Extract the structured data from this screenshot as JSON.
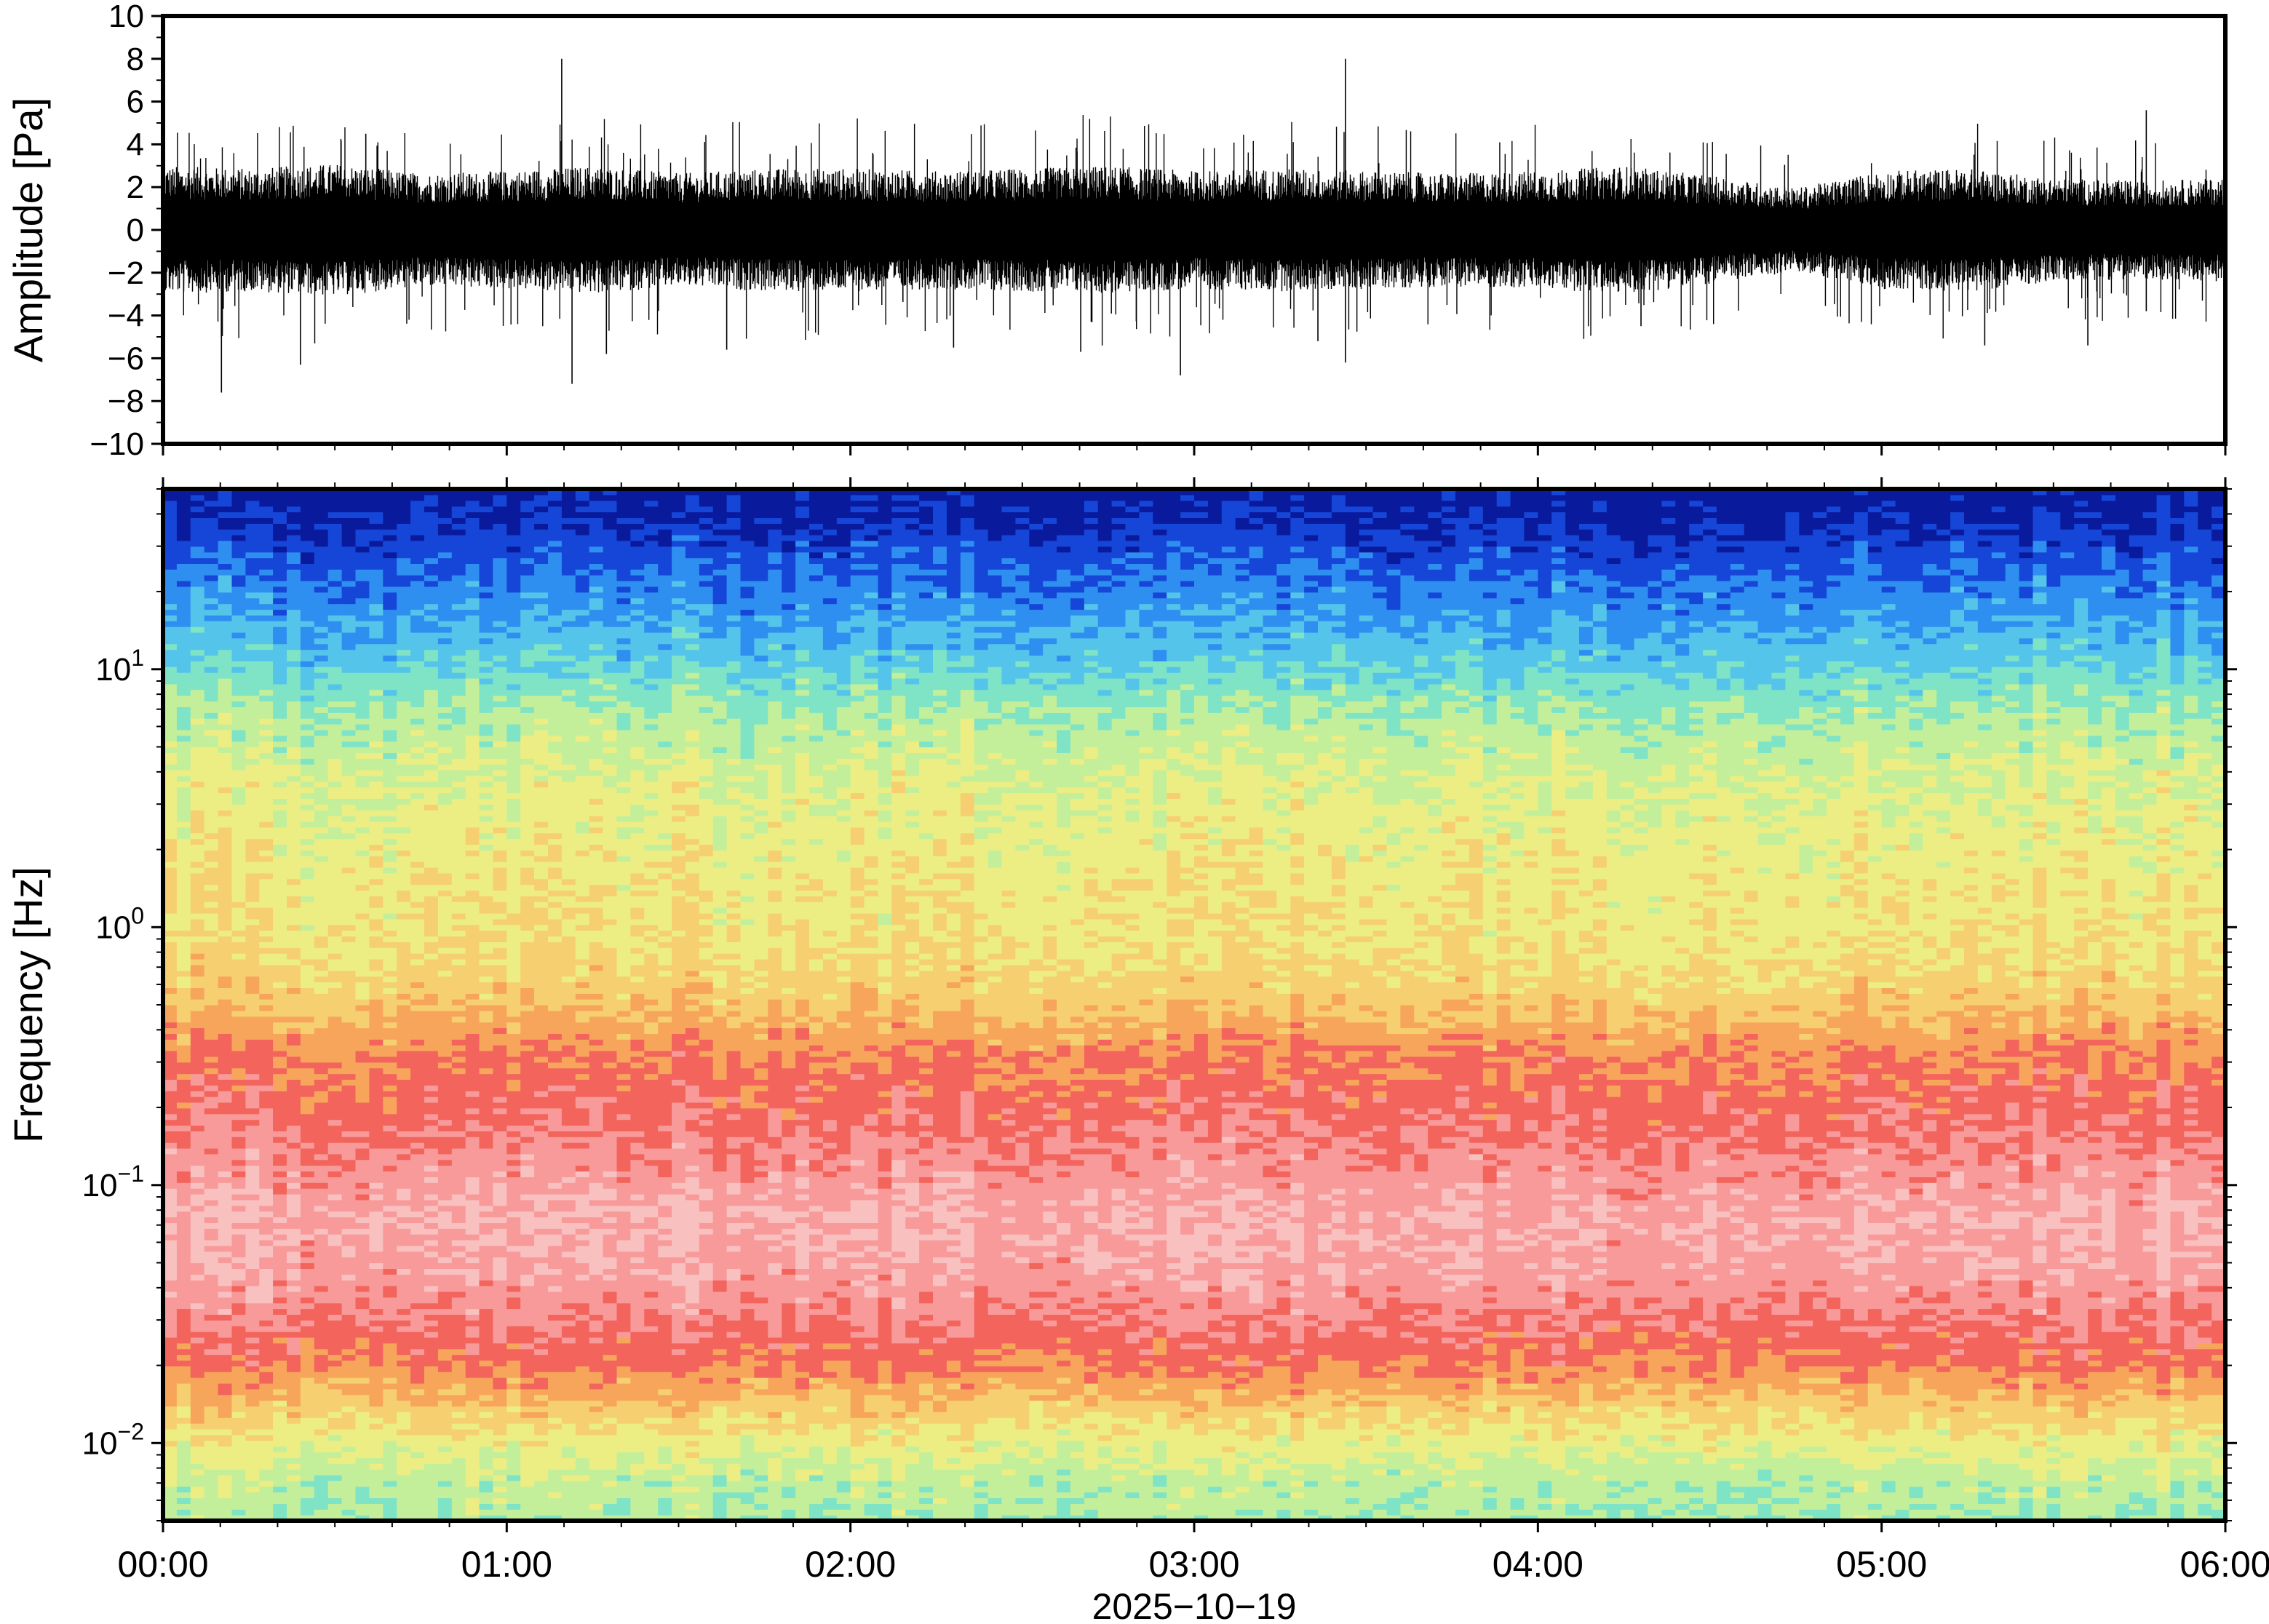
{
  "chart_data": [
    {
      "type": "line",
      "ylabel": "Amplitude [Pa]",
      "ylim": [
        -10,
        10
      ],
      "yticks": [
        10,
        8,
        6,
        4,
        2,
        0,
        -2,
        -4,
        -6,
        -8,
        -10
      ],
      "ytick_labels": [
        "10",
        "8",
        "6",
        "4",
        "2",
        "0",
        "−2",
        "−4",
        "−6",
        "−8",
        "−10"
      ],
      "xlim": [
        "00:00",
        "06:00"
      ],
      "envelope_hours": [
        0.0,
        0.25,
        0.5,
        0.75,
        1.0,
        1.25,
        1.5,
        1.75,
        2.0,
        2.25,
        2.5,
        2.75,
        3.0,
        3.25,
        3.5,
        3.75,
        4.0,
        4.25,
        4.5,
        4.75,
        5.0,
        5.25,
        5.5,
        5.75,
        6.0
      ],
      "envelope_amplitude": [
        2.6,
        2.5,
        2.7,
        2.3,
        2.4,
        2.6,
        2.3,
        2.5,
        2.5,
        2.4,
        2.5,
        2.6,
        2.4,
        2.5,
        2.4,
        2.3,
        2.4,
        2.6,
        2.2,
        1.7,
        2.4,
        2.5,
        2.1,
        2.0,
        2.1
      ],
      "spikes": [
        {
          "t": 0.17,
          "v": -7.6
        },
        {
          "t": 0.4,
          "v": -6.3
        },
        {
          "t": 0.59,
          "v": 4.5
        },
        {
          "t": 1.16,
          "v": 8.0
        },
        {
          "t": 1.19,
          "v": -7.2
        },
        {
          "t": 1.29,
          "v": -5.8
        },
        {
          "t": 1.64,
          "v": -5.6
        },
        {
          "t": 2.3,
          "v": -5.5
        },
        {
          "t": 2.67,
          "v": -5.7
        },
        {
          "t": 2.96,
          "v": -6.8
        },
        {
          "t": 3.36,
          "v": -5.2
        },
        {
          "t": 3.44,
          "v": 8.0
        },
        {
          "t": 3.44,
          "v": -6.2
        },
        {
          "t": 4.3,
          "v": -4.5
        },
        {
          "t": 5.3,
          "v": -5.4
        },
        {
          "t": 5.6,
          "v": -5.4
        },
        {
          "t": 5.77,
          "v": 5.6
        },
        {
          "t": 5.77,
          "v": -3.8
        }
      ]
    },
    {
      "type": "heatmap",
      "ylabel": "Frequency [Hz]",
      "yscale": "log",
      "ylim": [
        0.005,
        50
      ],
      "yticks": [
        10,
        1,
        0.1,
        0.01
      ],
      "ytick_labels": [
        {
          "base": "10",
          "exp": "1"
        },
        {
          "base": "10",
          "exp": "0"
        },
        {
          "base": "10",
          "exp": "−1"
        },
        {
          "base": "10",
          "exp": "−2"
        }
      ],
      "xlim": [
        "00:00",
        "06:00"
      ],
      "xticks": [
        "00:00",
        "01:00",
        "02:00",
        "03:00",
        "04:00",
        "05:00",
        "06:00"
      ],
      "xlabel": "2025−10−19",
      "colormap": [
        "#0a1a9c",
        "#1646d8",
        "#2f8ff0",
        "#55c4ea",
        "#7fe3c6",
        "#c4ef9a",
        "#ecee84",
        "#f6d070",
        "#f8a55c",
        "#f2645c",
        "#f89a9a",
        "#f9c0c0"
      ],
      "freq_profile": [
        {
          "f": 50,
          "level": 0.0
        },
        {
          "f": 35,
          "level": 0.6
        },
        {
          "f": 22,
          "level": 1.7
        },
        {
          "f": 12,
          "level": 3.0
        },
        {
          "f": 7,
          "level": 4.6
        },
        {
          "f": 4,
          "level": 5.6
        },
        {
          "f": 1.5,
          "level": 6.3
        },
        {
          "f": 0.8,
          "level": 6.5
        },
        {
          "f": 0.5,
          "level": 7.3
        },
        {
          "f": 0.32,
          "level": 8.6
        },
        {
          "f": 0.2,
          "level": 9.2
        },
        {
          "f": 0.12,
          "level": 9.9
        },
        {
          "f": 0.075,
          "level": 10.6
        },
        {
          "f": 0.045,
          "level": 10.3
        },
        {
          "f": 0.028,
          "level": 9.4
        },
        {
          "f": 0.02,
          "level": 8.7
        },
        {
          "f": 0.014,
          "level": 7.2
        },
        {
          "f": 0.01,
          "level": 6.0
        },
        {
          "f": 0.007,
          "level": 5.0
        },
        {
          "f": 0.005,
          "level": 4.7
        }
      ]
    }
  ]
}
